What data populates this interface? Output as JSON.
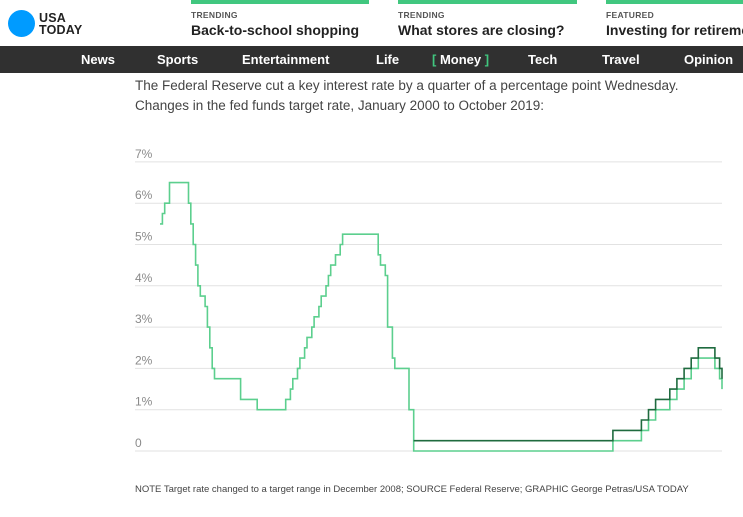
{
  "brand": {
    "line1": "USA",
    "line2": "TODAY",
    "color": "#009bff"
  },
  "promos": [
    {
      "kicker": "TRENDING",
      "headline": "Back-to-school shopping"
    },
    {
      "kicker": "TRENDING",
      "headline": "What stores are closing?"
    },
    {
      "kicker": "FEATURED",
      "headline": "Investing for retirement"
    }
  ],
  "nav": {
    "items": [
      {
        "label": "News"
      },
      {
        "label": "Sports"
      },
      {
        "label": "Entertainment"
      },
      {
        "label": "Life"
      },
      {
        "label": "Money",
        "active": true,
        "bracket_open": "[",
        "bracket_close": "]"
      },
      {
        "label": "Tech"
      },
      {
        "label": "Travel"
      },
      {
        "label": "Opinion"
      }
    ]
  },
  "article": {
    "intro": "The Federal Reserve cut a key interest rate by a quarter of a percentage point Wednesday. Changes in the fed funds target rate, January 2000 to October 2019:",
    "note": "NOTE Target rate changed to a target range in December 2008; SOURCE Federal Reserve; GRAPHIC George Petras/USA TODAY"
  },
  "colors": {
    "accent_green": "#41c77f",
    "nav_bg": "#303030",
    "lower_bound_line": "#5ccf8e",
    "upper_bound_line": "#1f6b3f"
  },
  "chart_data": {
    "type": "line",
    "title": "",
    "xlabel": "",
    "ylabel": "",
    "x_range": [
      "2000-01",
      "2019-10"
    ],
    "ylim": [
      0,
      7
    ],
    "yticks": [
      {
        "value": 0,
        "label": "0"
      },
      {
        "value": 1,
        "label": "1%"
      },
      {
        "value": 2,
        "label": "2%"
      },
      {
        "value": 3,
        "label": "3%"
      },
      {
        "value": 4,
        "label": "4%"
      },
      {
        "value": 5,
        "label": "5%"
      },
      {
        "value": 6,
        "label": "6%"
      },
      {
        "value": 7,
        "label": "7%"
      }
    ],
    "grid": true,
    "series": [
      {
        "step": true,
        "points": [
          [
            "2000-01",
            5.5
          ],
          [
            "2000-02",
            5.75
          ],
          [
            "2000-03",
            6.0
          ],
          [
            "2000-05",
            6.5
          ],
          [
            "2001-01",
            6.0
          ],
          [
            "2001-02",
            5.5
          ],
          [
            "2001-03",
            5.0
          ],
          [
            "2001-04",
            4.5
          ],
          [
            "2001-05",
            4.0
          ],
          [
            "2001-06",
            3.75
          ],
          [
            "2001-08",
            3.5
          ],
          [
            "2001-09",
            3.0
          ],
          [
            "2001-10",
            2.5
          ],
          [
            "2001-11",
            2.0
          ],
          [
            "2001-12",
            1.75
          ],
          [
            "2002-11",
            1.25
          ],
          [
            "2003-06",
            1.0
          ],
          [
            "2004-06",
            1.25
          ],
          [
            "2004-08",
            1.5
          ],
          [
            "2004-09",
            1.75
          ],
          [
            "2004-11",
            2.0
          ],
          [
            "2004-12",
            2.25
          ],
          [
            "2005-02",
            2.5
          ],
          [
            "2005-03",
            2.75
          ],
          [
            "2005-05",
            3.0
          ],
          [
            "2005-06",
            3.25
          ],
          [
            "2005-08",
            3.5
          ],
          [
            "2005-09",
            3.75
          ],
          [
            "2005-11",
            4.0
          ],
          [
            "2005-12",
            4.25
          ],
          [
            "2006-01",
            4.5
          ],
          [
            "2006-03",
            4.75
          ],
          [
            "2006-05",
            5.0
          ],
          [
            "2006-06",
            5.25
          ],
          [
            "2007-09",
            4.75
          ],
          [
            "2007-10",
            4.5
          ],
          [
            "2007-12",
            4.25
          ],
          [
            "2008-01",
            3.0
          ],
          [
            "2008-03",
            2.25
          ],
          [
            "2008-04",
            2.0
          ],
          [
            "2008-10",
            1.0
          ],
          [
            "2008-12",
            0.0
          ],
          [
            "2015-12",
            0.25
          ],
          [
            "2016-12",
            0.5
          ],
          [
            "2017-03",
            0.75
          ],
          [
            "2017-06",
            1.0
          ],
          [
            "2017-12",
            1.25
          ],
          [
            "2018-03",
            1.5
          ],
          [
            "2018-06",
            1.75
          ],
          [
            "2018-09",
            2.0
          ],
          [
            "2018-12",
            2.25
          ],
          [
            "2019-07",
            2.0
          ],
          [
            "2019-09",
            1.75
          ],
          [
            "2019-10",
            1.5
          ]
        ]
      },
      {
        "step": true,
        "points": [
          [
            "2008-12",
            0.25
          ],
          [
            "2015-12",
            0.5
          ],
          [
            "2016-12",
            0.75
          ],
          [
            "2017-03",
            1.0
          ],
          [
            "2017-06",
            1.25
          ],
          [
            "2017-12",
            1.5
          ],
          [
            "2018-03",
            1.75
          ],
          [
            "2018-06",
            2.0
          ],
          [
            "2018-09",
            2.25
          ],
          [
            "2018-12",
            2.5
          ],
          [
            "2019-07",
            2.25
          ],
          [
            "2019-09",
            2.0
          ],
          [
            "2019-10",
            1.75
          ]
        ]
      }
    ]
  }
}
